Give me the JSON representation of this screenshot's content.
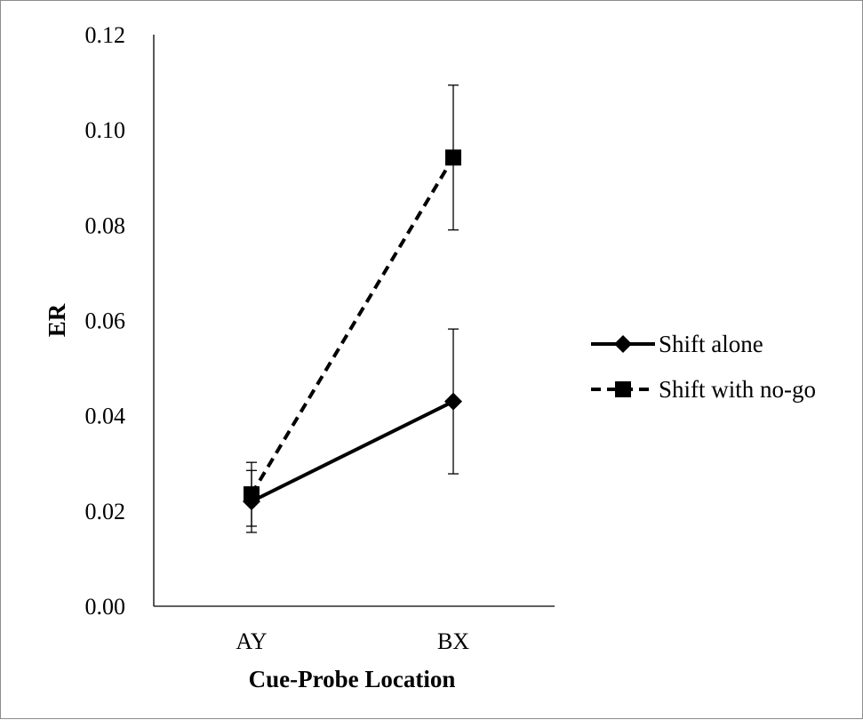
{
  "chart_data": {
    "type": "line",
    "categories": [
      "AY",
      "BX"
    ],
    "series": [
      {
        "name": "Shift alone",
        "values": [
          0.022,
          0.043
        ],
        "error": [
          0.0065,
          0.0152
        ],
        "line_style": "solid",
        "marker": "diamond"
      },
      {
        "name": "Shift with no-go",
        "values": [
          0.0235,
          0.0942
        ],
        "error": [
          0.0067,
          0.0152
        ],
        "line_style": "dashed",
        "marker": "square"
      }
    ],
    "title": "",
    "xlabel": "Cue-Probe Location",
    "ylabel": "ER",
    "ylim": [
      0,
      0.12
    ],
    "yticks": [
      "0.00",
      "0.02",
      "0.04",
      "0.06",
      "0.08",
      "0.10",
      "0.12"
    ],
    "grid": false,
    "legend_position": "right",
    "color": "#000000"
  }
}
